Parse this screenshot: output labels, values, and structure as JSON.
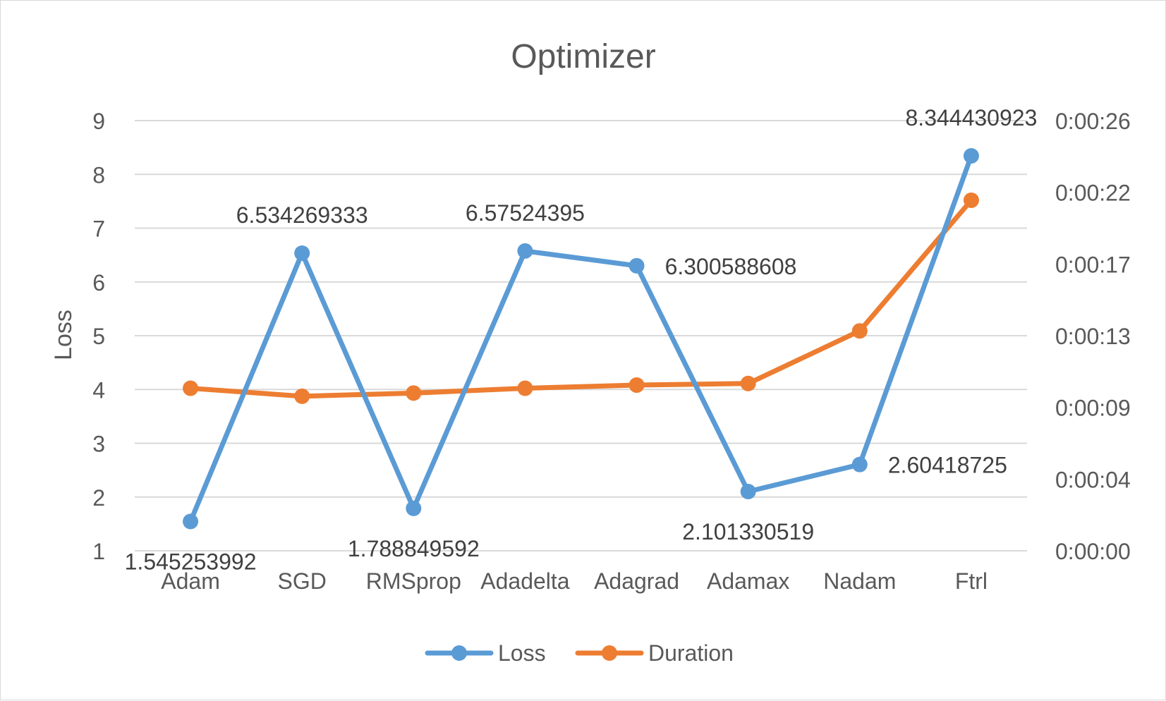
{
  "chart_data": {
    "type": "line",
    "title": "Optimizer",
    "ylabel": "Loss",
    "y2label": "",
    "categories": [
      "Adam",
      "SGD",
      "RMSprop",
      "Adadelta",
      "Adagrad",
      "Adamax",
      "Nadam",
      "Ftrl"
    ],
    "ylim": [
      1,
      9
    ],
    "yticks": [
      "1",
      "2",
      "3",
      "4",
      "5",
      "6",
      "7",
      "8",
      "9"
    ],
    "y2lim_seconds": [
      0,
      27
    ],
    "y2ticks": [
      {
        "label": "0:00:00",
        "seconds": 0
      },
      {
        "label": "0:00:04",
        "seconds": 4.5
      },
      {
        "label": "0:00:09",
        "seconds": 9
      },
      {
        "label": "0:00:13",
        "seconds": 13.5
      },
      {
        "label": "0:00:17",
        "seconds": 18
      },
      {
        "label": "0:00:22",
        "seconds": 22.5
      },
      {
        "label": "0:00:26",
        "seconds": 27
      }
    ],
    "series": [
      {
        "name": "Loss",
        "axis": "left",
        "color": "#5b9bd5",
        "values": [
          1.545253992,
          6.534269333,
          1.788849592,
          6.57524395,
          6.300588608,
          2.101330519,
          2.60418725,
          8.344430923
        ],
        "data_labels": [
          "1.545253992",
          "6.534269333",
          "1.788849592",
          "6.57524395",
          "6.300588608",
          "2.101330519",
          "2.60418725",
          "8.344430923"
        ]
      },
      {
        "name": "Duration",
        "axis": "right",
        "color": "#ed7d31",
        "values_seconds": [
          10.2,
          9.7,
          9.9,
          10.2,
          10.4,
          10.5,
          13.8,
          22.0
        ]
      }
    ],
    "grid": true,
    "legend_position": "bottom"
  }
}
